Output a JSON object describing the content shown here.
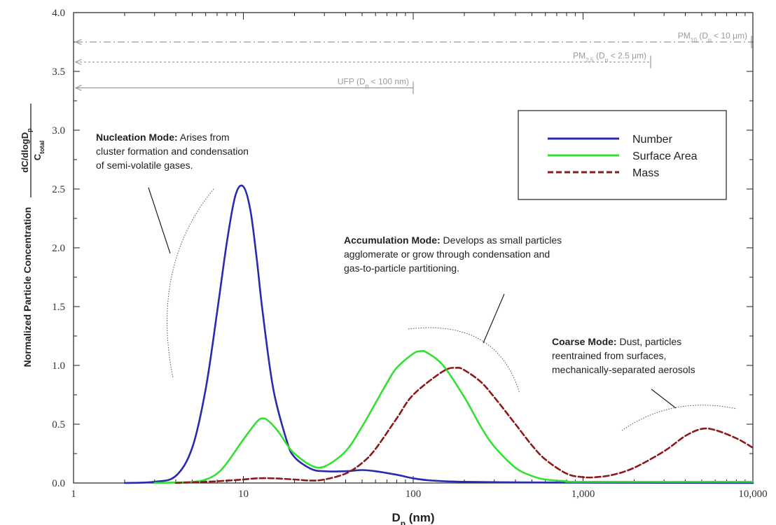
{
  "chart_data": {
    "type": "line",
    "x_scale": "log",
    "xlim": [
      1,
      10000
    ],
    "ylim": [
      0,
      4.0
    ],
    "x_ticks": [
      1,
      10,
      100,
      1000,
      10000
    ],
    "x_tick_labels": [
      "1",
      "10",
      "100",
      "1,000",
      "10,000"
    ],
    "y_ticks": [
      0,
      0.5,
      1.0,
      1.5,
      2.0,
      2.5,
      3.0,
      3.5,
      4.0
    ],
    "y_tick_labels": [
      "0.0",
      "0.5",
      "1.0",
      "1.5",
      "2.0",
      "2.5",
      "3.0",
      "3.5",
      "4.0"
    ],
    "xlabel": {
      "main": "D",
      "sub": "p",
      "unit": " (nm)"
    },
    "ylabel": {
      "main": "Normalized Particle Concentration",
      "numerator": {
        "main": "dC/dlogD",
        "sub": "p"
      },
      "denominator": {
        "main": "C",
        "sub": "total"
      }
    },
    "grid": false,
    "legend_position": "upper-right",
    "series": [
      {
        "name": "Number",
        "color": "#2a2ab0",
        "dash": "solid",
        "x": [
          2,
          3,
          4,
          5,
          6,
          7,
          8,
          9,
          10,
          11,
          12,
          13,
          15,
          18,
          20,
          25,
          30,
          40,
          50,
          60,
          80,
          100,
          130,
          200,
          500,
          1000,
          10000
        ],
        "y": [
          0,
          0.01,
          0.06,
          0.3,
          0.8,
          1.45,
          2.05,
          2.45,
          2.52,
          2.32,
          1.9,
          1.45,
          0.8,
          0.36,
          0.22,
          0.12,
          0.1,
          0.1,
          0.11,
          0.1,
          0.07,
          0.04,
          0.02,
          0.01,
          0.005,
          0.003,
          0
        ]
      },
      {
        "name": "Surface Area",
        "color": "#33e033",
        "dash": "solid",
        "x": [
          3,
          5,
          6,
          7,
          8,
          10,
          12,
          13,
          14,
          16,
          18,
          20,
          25,
          30,
          40,
          50,
          60,
          70,
          80,
          100,
          110,
          120,
          150,
          200,
          250,
          300,
          400,
          500,
          600,
          800,
          1000,
          10000
        ],
        "y": [
          0,
          0.01,
          0.03,
          0.08,
          0.17,
          0.37,
          0.52,
          0.55,
          0.53,
          0.44,
          0.33,
          0.25,
          0.15,
          0.14,
          0.27,
          0.48,
          0.68,
          0.85,
          0.98,
          1.1,
          1.12,
          1.11,
          1.0,
          0.73,
          0.48,
          0.31,
          0.13,
          0.06,
          0.03,
          0.015,
          0.01,
          0.01
        ]
      },
      {
        "name": "Mass",
        "color": "#8b1a1a",
        "dash": "dashed",
        "x": [
          4,
          6,
          8,
          10,
          12,
          15,
          20,
          25,
          30,
          40,
          50,
          60,
          80,
          100,
          150,
          180,
          200,
          250,
          300,
          400,
          500,
          600,
          800,
          1000,
          1200,
          1500,
          2000,
          3000,
          4000,
          5000,
          6000,
          8000,
          10000
        ],
        "y": [
          0,
          0.01,
          0.02,
          0.03,
          0.04,
          0.04,
          0.03,
          0.02,
          0.03,
          0.08,
          0.17,
          0.29,
          0.55,
          0.75,
          0.95,
          0.98,
          0.96,
          0.86,
          0.73,
          0.5,
          0.32,
          0.2,
          0.08,
          0.05,
          0.05,
          0.07,
          0.13,
          0.27,
          0.4,
          0.46,
          0.45,
          0.38,
          0.3
        ]
      }
    ],
    "range_markers": [
      {
        "label": {
          "main": "PM",
          "sub": "10",
          "rest": " (D",
          "sub2": "p",
          "rest2": " < 10 μm)"
        },
        "x_end": 10000,
        "y": 3.75,
        "style": "dashdot"
      },
      {
        "label": {
          "main": "PM",
          "sub": "2.5",
          "rest": " (D",
          "sub2": "p",
          "rest2": " < 2.5 μm)"
        },
        "x_end": 2500,
        "y": 3.58,
        "style": "dotted"
      },
      {
        "label": {
          "main": "UFP (D",
          "sub": "p",
          "rest": " < 100 nm)",
          "sub2": "",
          "rest2": ""
        },
        "x_end": 100,
        "y": 3.36,
        "style": "solid"
      }
    ],
    "annotations": [
      {
        "id": "nucleation",
        "title": "Nucleation Mode:",
        "lines": [
          "Arises from",
          "cluster formation and condensation",
          "of semi-volatile gases."
        ]
      },
      {
        "id": "accumulation",
        "title": "Accumulation Mode:",
        "lines": [
          "Develops as small particles",
          "agglomerate or grow through condensation and",
          "gas-to-particle partitioning."
        ]
      },
      {
        "id": "coarse",
        "title": "Coarse Mode:",
        "lines": [
          "Dust, particles",
          "reentrained from surfaces,",
          "mechanically-separated aerosols"
        ]
      }
    ]
  }
}
